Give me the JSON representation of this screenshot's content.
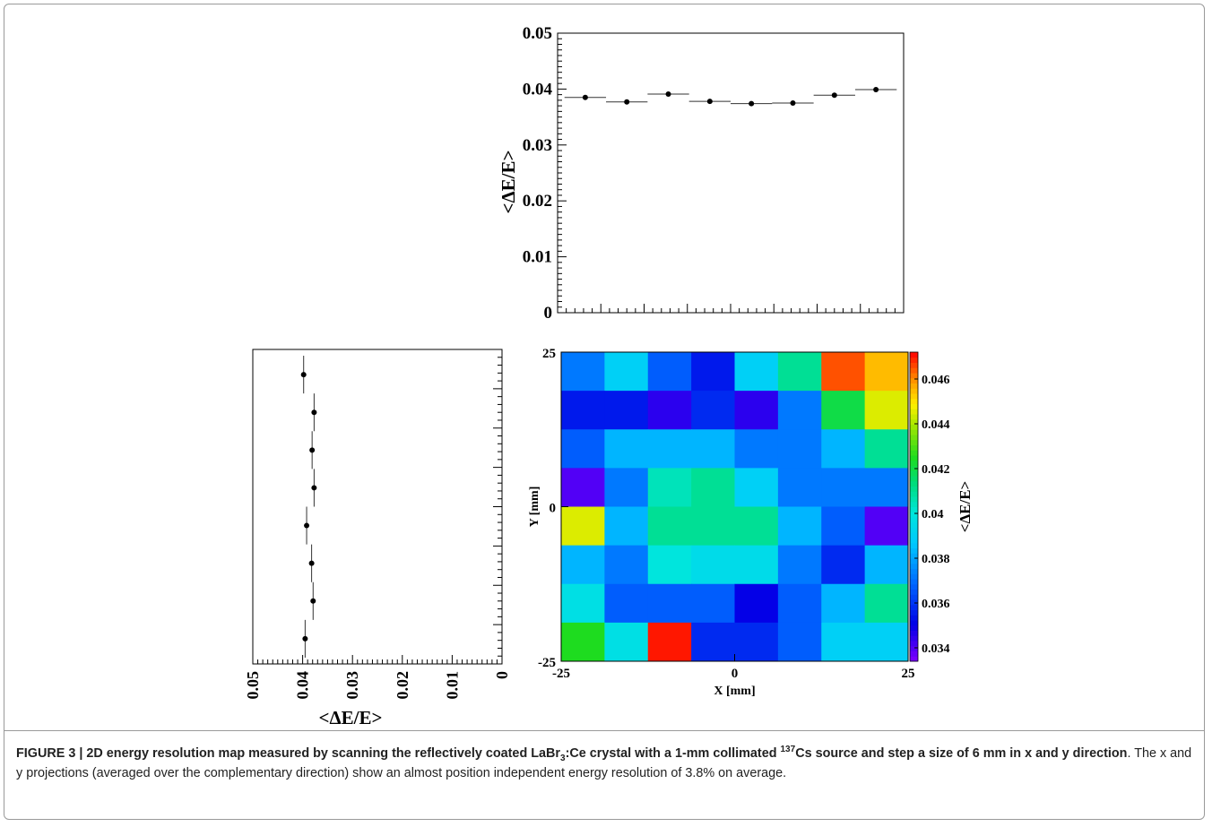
{
  "chart_data": [
    {
      "type": "scatter",
      "panel": "x-projection",
      "ylabel": "<ΔE/E>",
      "ylim": [
        0,
        0.05
      ],
      "y_ticks": [
        "0",
        "0.01",
        "0.02",
        "0.03",
        "0.04",
        "0.05"
      ],
      "xlim": [
        -25,
        25
      ],
      "x": [
        -21,
        -15,
        -9,
        -3,
        3,
        9,
        15,
        21
      ],
      "values": [
        0.0385,
        0.0377,
        0.0391,
        0.0378,
        0.0374,
        0.0375,
        0.0389,
        0.0399
      ],
      "xerr": 3,
      "yerr": 0.0004
    },
    {
      "type": "scatter",
      "panel": "y-projection",
      "xlabel": "<ΔE/E>",
      "xlim": [
        0,
        0.05
      ],
      "x_reversed": true,
      "x_ticks": [
        "0.05",
        "0.04",
        "0.03",
        "0.02",
        "0.01",
        "0"
      ],
      "ylim": [
        -25,
        25
      ],
      "y": [
        -21,
        -15,
        -9,
        -3,
        3,
        9,
        15,
        21
      ],
      "values": [
        0.0395,
        0.0379,
        0.0382,
        0.0392,
        0.0377,
        0.0381,
        0.0377,
        0.0398
      ],
      "yerr": 3,
      "xerr": 0.0003
    },
    {
      "type": "heatmap",
      "panel": "2D map",
      "xlabel": "X [mm]",
      "ylabel": "Y [mm]",
      "x_ticks": [
        "-25",
        "0",
        "25"
      ],
      "y_ticks": [
        "25",
        "0",
        "-25"
      ],
      "colorbar_label": "<ΔE/E>",
      "colorbar_ticks": [
        "0.046",
        "0.044",
        "0.042",
        "0.04",
        "0.038",
        "0.036",
        "0.034"
      ],
      "zlim": [
        0.0334,
        0.0472
      ],
      "grid_rows_top_to_bottom": [
        [
          0.0372,
          0.039,
          0.0367,
          0.0355,
          0.039,
          0.041,
          0.0465,
          0.0455
        ],
        [
          0.0355,
          0.0355,
          0.0345,
          0.0358,
          0.0345,
          0.0372,
          0.042,
          0.0445
        ],
        [
          0.0367,
          0.0383,
          0.0383,
          0.0383,
          0.0372,
          0.0372,
          0.0383,
          0.041
        ],
        [
          0.034,
          0.0372,
          0.0405,
          0.041,
          0.039,
          0.0372,
          0.0372,
          0.0372
        ],
        [
          0.0445,
          0.0383,
          0.041,
          0.041,
          0.041,
          0.0383,
          0.0367,
          0.034
        ],
        [
          0.0383,
          0.0372,
          0.04,
          0.0395,
          0.0395,
          0.0372,
          0.0358,
          0.0383
        ],
        [
          0.0397,
          0.0367,
          0.0367,
          0.0367,
          0.035,
          0.0367,
          0.0383,
          0.041
        ],
        [
          0.0425,
          0.0397,
          0.047,
          0.0358,
          0.0358,
          0.0367,
          0.039,
          0.039
        ]
      ]
    }
  ],
  "caption": {
    "p1": "FIGURE 3 | 2D energy resolution map measured by scanning the reflectively coated LaBr",
    "sub1": "3",
    "p2": ":Ce crystal with a 1-mm collimated ",
    "sup1": "137",
    "p3": "Cs source and step a size of 6 mm in x and y direction",
    "rest": ". The x and y projections (averaged over the complementary direction) show an almost position independent energy resolution of 3.8% on average."
  }
}
